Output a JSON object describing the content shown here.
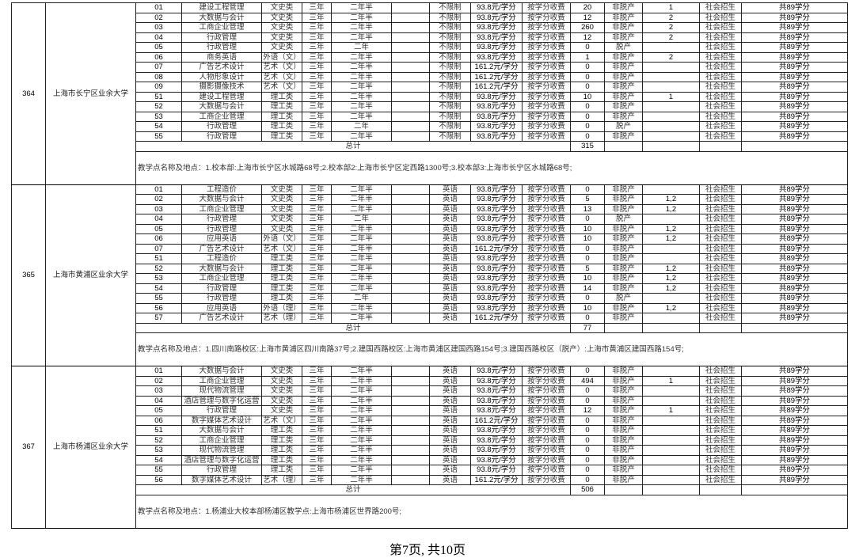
{
  "sections": [
    {
      "no": "364",
      "school": "上海市长宁区业余大学",
      "rows": [
        [
          "01",
          "建设工程管理",
          "文史类",
          "三年",
          "二年半",
          "",
          "不限制",
          "93.8元/学分",
          "按学分收费",
          "20",
          "非脱产",
          "1",
          "社会招生",
          "共89学分"
        ],
        [
          "02",
          "大数据与会计",
          "文史类",
          "三年",
          "二年半",
          "",
          "不限制",
          "93.8元/学分",
          "按学分收费",
          "12",
          "非脱产",
          "2",
          "社会招生",
          "共89学分"
        ],
        [
          "03",
          "工商企业管理",
          "文史类",
          "三年",
          "二年半",
          "",
          "不限制",
          "93.8元/学分",
          "按学分收费",
          "260",
          "非脱产",
          "2",
          "社会招生",
          "共89学分"
        ],
        [
          "04",
          "行政管理",
          "文史类",
          "三年",
          "二年半",
          "",
          "不限制",
          "93.8元/学分",
          "按学分收费",
          "12",
          "非脱产",
          "2",
          "社会招生",
          "共89学分"
        ],
        [
          "05",
          "行政管理",
          "文史类",
          "三年",
          "二年",
          "",
          "不限制",
          "93.8元/学分",
          "按学分收费",
          "0",
          "脱产",
          "",
          "社会招生",
          "共89学分"
        ],
        [
          "06",
          "商务英语",
          "外语（文）",
          "三年",
          "二年半",
          "",
          "不限制",
          "93.8元/学分",
          "按学分收费",
          "1",
          "非脱产",
          "2",
          "社会招生",
          "共89学分"
        ],
        [
          "07",
          "广告艺术设计",
          "艺术（文）",
          "三年",
          "二年半",
          "",
          "不限制",
          "161.2元/学分",
          "按学分收费",
          "0",
          "非脱产",
          "",
          "社会招生",
          "共89学分"
        ],
        [
          "08",
          "人物形象设计",
          "艺术（文）",
          "三年",
          "二年半",
          "",
          "不限制",
          "161.2元/学分",
          "按学分收费",
          "0",
          "非脱产",
          "",
          "社会招生",
          "共89学分"
        ],
        [
          "09",
          "摄影摄像技术",
          "艺术（文）",
          "三年",
          "二年半",
          "",
          "不限制",
          "161.2元/学分",
          "按学分收费",
          "0",
          "非脱产",
          "",
          "社会招生",
          "共89学分"
        ],
        [
          "51",
          "建设工程管理",
          "理工类",
          "三年",
          "二年半",
          "",
          "不限制",
          "93.8元/学分",
          "按学分收费",
          "10",
          "非脱产",
          "1",
          "社会招生",
          "共89学分"
        ],
        [
          "52",
          "大数据与会计",
          "理工类",
          "三年",
          "二年半",
          "",
          "不限制",
          "93.8元/学分",
          "按学分收费",
          "0",
          "非脱产",
          "",
          "社会招生",
          "共89学分"
        ],
        [
          "53",
          "工商企业管理",
          "理工类",
          "三年",
          "二年半",
          "",
          "不限制",
          "93.8元/学分",
          "按学分收费",
          "0",
          "非脱产",
          "",
          "社会招生",
          "共89学分"
        ],
        [
          "54",
          "行政管理",
          "理工类",
          "三年",
          "二年",
          "",
          "不限制",
          "93.8元/学分",
          "按学分收费",
          "0",
          "脱产",
          "",
          "社会招生",
          "共89学分"
        ],
        [
          "55",
          "行政管理",
          "理工类",
          "三年",
          "二年半",
          "",
          "不限制",
          "93.8元/学分",
          "按学分收费",
          "0",
          "非脱产",
          "",
          "社会招生",
          "共89学分"
        ]
      ],
      "total_label": "总计",
      "total": "315",
      "address": "教学点名称及地点：1.校本部:上海市长宁区水城路68号;2.校本部2:上海市长宁区定西路1300号;3.校本部3:上海市长宁区水城路68号;"
    },
    {
      "no": "365",
      "school": "上海市黄浦区业余大学",
      "rows": [
        [
          "01",
          "工程造价",
          "文史类",
          "三年",
          "二年半",
          "",
          "英语",
          "93.8元/学分",
          "按学分收费",
          "0",
          "非脱产",
          "",
          "社会招生",
          "共89学分"
        ],
        [
          "02",
          "大数据与会计",
          "文史类",
          "三年",
          "二年半",
          "",
          "英语",
          "93.8元/学分",
          "按学分收费",
          "5",
          "非脱产",
          "1,2",
          "社会招生",
          "共89学分"
        ],
        [
          "03",
          "工商企业管理",
          "文史类",
          "三年",
          "二年半",
          "",
          "英语",
          "93.8元/学分",
          "按学分收费",
          "13",
          "非脱产",
          "1,2",
          "社会招生",
          "共89学分"
        ],
        [
          "04",
          "行政管理",
          "文史类",
          "三年",
          "二年",
          "",
          "英语",
          "93.8元/学分",
          "按学分收费",
          "0",
          "脱产",
          "",
          "社会招生",
          "共89学分"
        ],
        [
          "05",
          "行政管理",
          "文史类",
          "三年",
          "二年半",
          "",
          "英语",
          "93.8元/学分",
          "按学分收费",
          "10",
          "非脱产",
          "1,2",
          "社会招生",
          "共89学分"
        ],
        [
          "06",
          "应用英语",
          "外语（文）",
          "三年",
          "二年半",
          "",
          "英语",
          "93.8元/学分",
          "按学分收费",
          "10",
          "非脱产",
          "1,2",
          "社会招生",
          "共89学分"
        ],
        [
          "07",
          "广告艺术设计",
          "艺术（文）",
          "三年",
          "二年半",
          "",
          "英语",
          "161.2元/学分",
          "按学分收费",
          "0",
          "非脱产",
          "",
          "社会招生",
          "共89学分"
        ],
        [
          "51",
          "工程造价",
          "理工类",
          "三年",
          "二年半",
          "",
          "英语",
          "93.8元/学分",
          "按学分收费",
          "0",
          "非脱产",
          "",
          "社会招生",
          "共89学分"
        ],
        [
          "52",
          "大数据与会计",
          "理工类",
          "三年",
          "二年半",
          "",
          "英语",
          "93.8元/学分",
          "按学分收费",
          "5",
          "非脱产",
          "1,2",
          "社会招生",
          "共89学分"
        ],
        [
          "53",
          "工商企业管理",
          "理工类",
          "三年",
          "二年半",
          "",
          "英语",
          "93.8元/学分",
          "按学分收费",
          "10",
          "非脱产",
          "1,2",
          "社会招生",
          "共89学分"
        ],
        [
          "54",
          "行政管理",
          "理工类",
          "三年",
          "二年半",
          "",
          "英语",
          "93.8元/学分",
          "按学分收费",
          "14",
          "非脱产",
          "1,2",
          "社会招生",
          "共89学分"
        ],
        [
          "55",
          "行政管理",
          "理工类",
          "三年",
          "二年",
          "",
          "英语",
          "93.8元/学分",
          "按学分收费",
          "0",
          "脱产",
          "",
          "社会招生",
          "共89学分"
        ],
        [
          "56",
          "应用英语",
          "外语（理）",
          "三年",
          "二年半",
          "",
          "英语",
          "93.8元/学分",
          "按学分收费",
          "10",
          "非脱产",
          "1,2",
          "社会招生",
          "共89学分"
        ],
        [
          "57",
          "广告艺术设计",
          "艺术（理）",
          "三年",
          "二年半",
          "",
          "英语",
          "161.2元/学分",
          "按学分收费",
          "0",
          "非脱产",
          "",
          "社会招生",
          "共89学分"
        ]
      ],
      "total_label": "总计",
      "total": "77",
      "address": "教学点名称及地点：1.四川南路校区:上海市黄浦区四川南路37号;2.建国西路校区:上海市黄浦区建国西路154号;3.建国西路校区（脱产）:上海市黄浦区建国西路154号;"
    },
    {
      "no": "367",
      "school": "上海市杨浦区业余大学",
      "rows": [
        [
          "01",
          "大数据与会计",
          "文史类",
          "三年",
          "二年半",
          "",
          "英语",
          "93.8元/学分",
          "按学分收费",
          "0",
          "非脱产",
          "",
          "社会招生",
          "共89学分"
        ],
        [
          "02",
          "工商企业管理",
          "文史类",
          "三年",
          "二年半",
          "",
          "英语",
          "93.8元/学分",
          "按学分收费",
          "494",
          "非脱产",
          "1",
          "社会招生",
          "共89学分"
        ],
        [
          "03",
          "现代物流管理",
          "文史类",
          "三年",
          "二年半",
          "",
          "英语",
          "93.8元/学分",
          "按学分收费",
          "0",
          "非脱产",
          "",
          "社会招生",
          "共89学分"
        ],
        [
          "04",
          "酒店管理与数字化运营",
          "文史类",
          "三年",
          "二年半",
          "",
          "英语",
          "93.8元/学分",
          "按学分收费",
          "0",
          "非脱产",
          "",
          "社会招生",
          "共89学分"
        ],
        [
          "05",
          "行政管理",
          "文史类",
          "三年",
          "二年半",
          "",
          "英语",
          "93.8元/学分",
          "按学分收费",
          "12",
          "非脱产",
          "1",
          "社会招生",
          "共89学分"
        ],
        [
          "06",
          "数字媒体艺术设计",
          "艺术（文）",
          "三年",
          "二年半",
          "",
          "英语",
          "161.2元/学分",
          "按学分收费",
          "0",
          "非脱产",
          "",
          "社会招生",
          "共89学分"
        ],
        [
          "51",
          "大数据与会计",
          "理工类",
          "三年",
          "二年半",
          "",
          "英语",
          "93.8元/学分",
          "按学分收费",
          "0",
          "非脱产",
          "",
          "社会招生",
          "共89学分"
        ],
        [
          "52",
          "工商企业管理",
          "理工类",
          "三年",
          "二年半",
          "",
          "英语",
          "93.8元/学分",
          "按学分收费",
          "0",
          "非脱产",
          "",
          "社会招生",
          "共89学分"
        ],
        [
          "53",
          "现代物流管理",
          "理工类",
          "三年",
          "二年半",
          "",
          "英语",
          "93.8元/学分",
          "按学分收费",
          "0",
          "非脱产",
          "",
          "社会招生",
          "共89学分"
        ],
        [
          "54",
          "酒店管理与数字化运营",
          "理工类",
          "三年",
          "二年半",
          "",
          "英语",
          "93.8元/学分",
          "按学分收费",
          "0",
          "非脱产",
          "",
          "社会招生",
          "共89学分"
        ],
        [
          "55",
          "行政管理",
          "理工类",
          "三年",
          "二年半",
          "",
          "英语",
          "93.8元/学分",
          "按学分收费",
          "0",
          "非脱产",
          "",
          "社会招生",
          "共89学分"
        ],
        [
          "56",
          "数字媒体艺术设计",
          "艺术（理）",
          "三年",
          "二年半",
          "",
          "英语",
          "161.2元/学分",
          "按学分收费",
          "0",
          "非脱产",
          "",
          "社会招生",
          "共89学分"
        ]
      ],
      "total_label": "总计",
      "total": "506",
      "address": "教学点名称及地点：1.杨浦业大校本部杨浦区教学点:上海市杨浦区世界路200号;"
    }
  ],
  "footer": {
    "page_label": "第7页, 共10页"
  }
}
